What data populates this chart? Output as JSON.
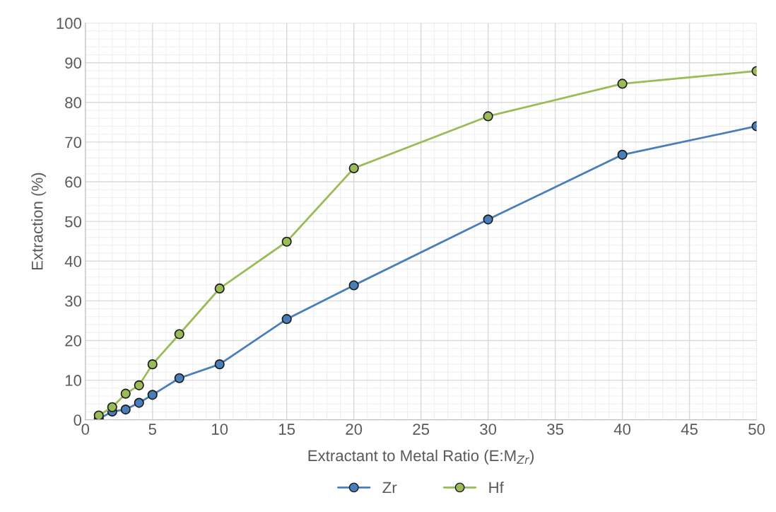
{
  "chart_data": {
    "type": "line",
    "xlabel": "Extractant to Metal Ratio (E:M$_{Zr}$)",
    "ylabel": "Extraction (%)",
    "xlim": [
      0,
      50
    ],
    "xticks": [
      0,
      5,
      10,
      15,
      20,
      25,
      30,
      35,
      40,
      45,
      50
    ],
    "ylim": [
      0,
      100
    ],
    "yticks": [
      0,
      10,
      20,
      30,
      40,
      50,
      60,
      70,
      80,
      90,
      100
    ],
    "grid": true,
    "legend": "bottom",
    "marker": "circle",
    "line_style": "solid",
    "x": [
      1,
      2,
      3,
      4,
      5,
      7,
      10,
      15,
      20,
      30,
      40,
      50
    ],
    "series": [
      {
        "name": "Zr",
        "color": "#4a7ebb",
        "values": [
          0.2,
          2.1,
          2.6,
          4.3,
          6.3,
          10.5,
          14.0,
          25.4,
          33.9,
          50.5,
          66.8,
          74.0
        ]
      },
      {
        "name": "Hf",
        "color": "#9bbb59",
        "values": [
          1.1,
          3.2,
          6.6,
          8.7,
          14.0,
          21.6,
          33.1,
          44.9,
          63.4,
          76.5,
          84.7,
          87.9
        ]
      }
    ]
  }
}
